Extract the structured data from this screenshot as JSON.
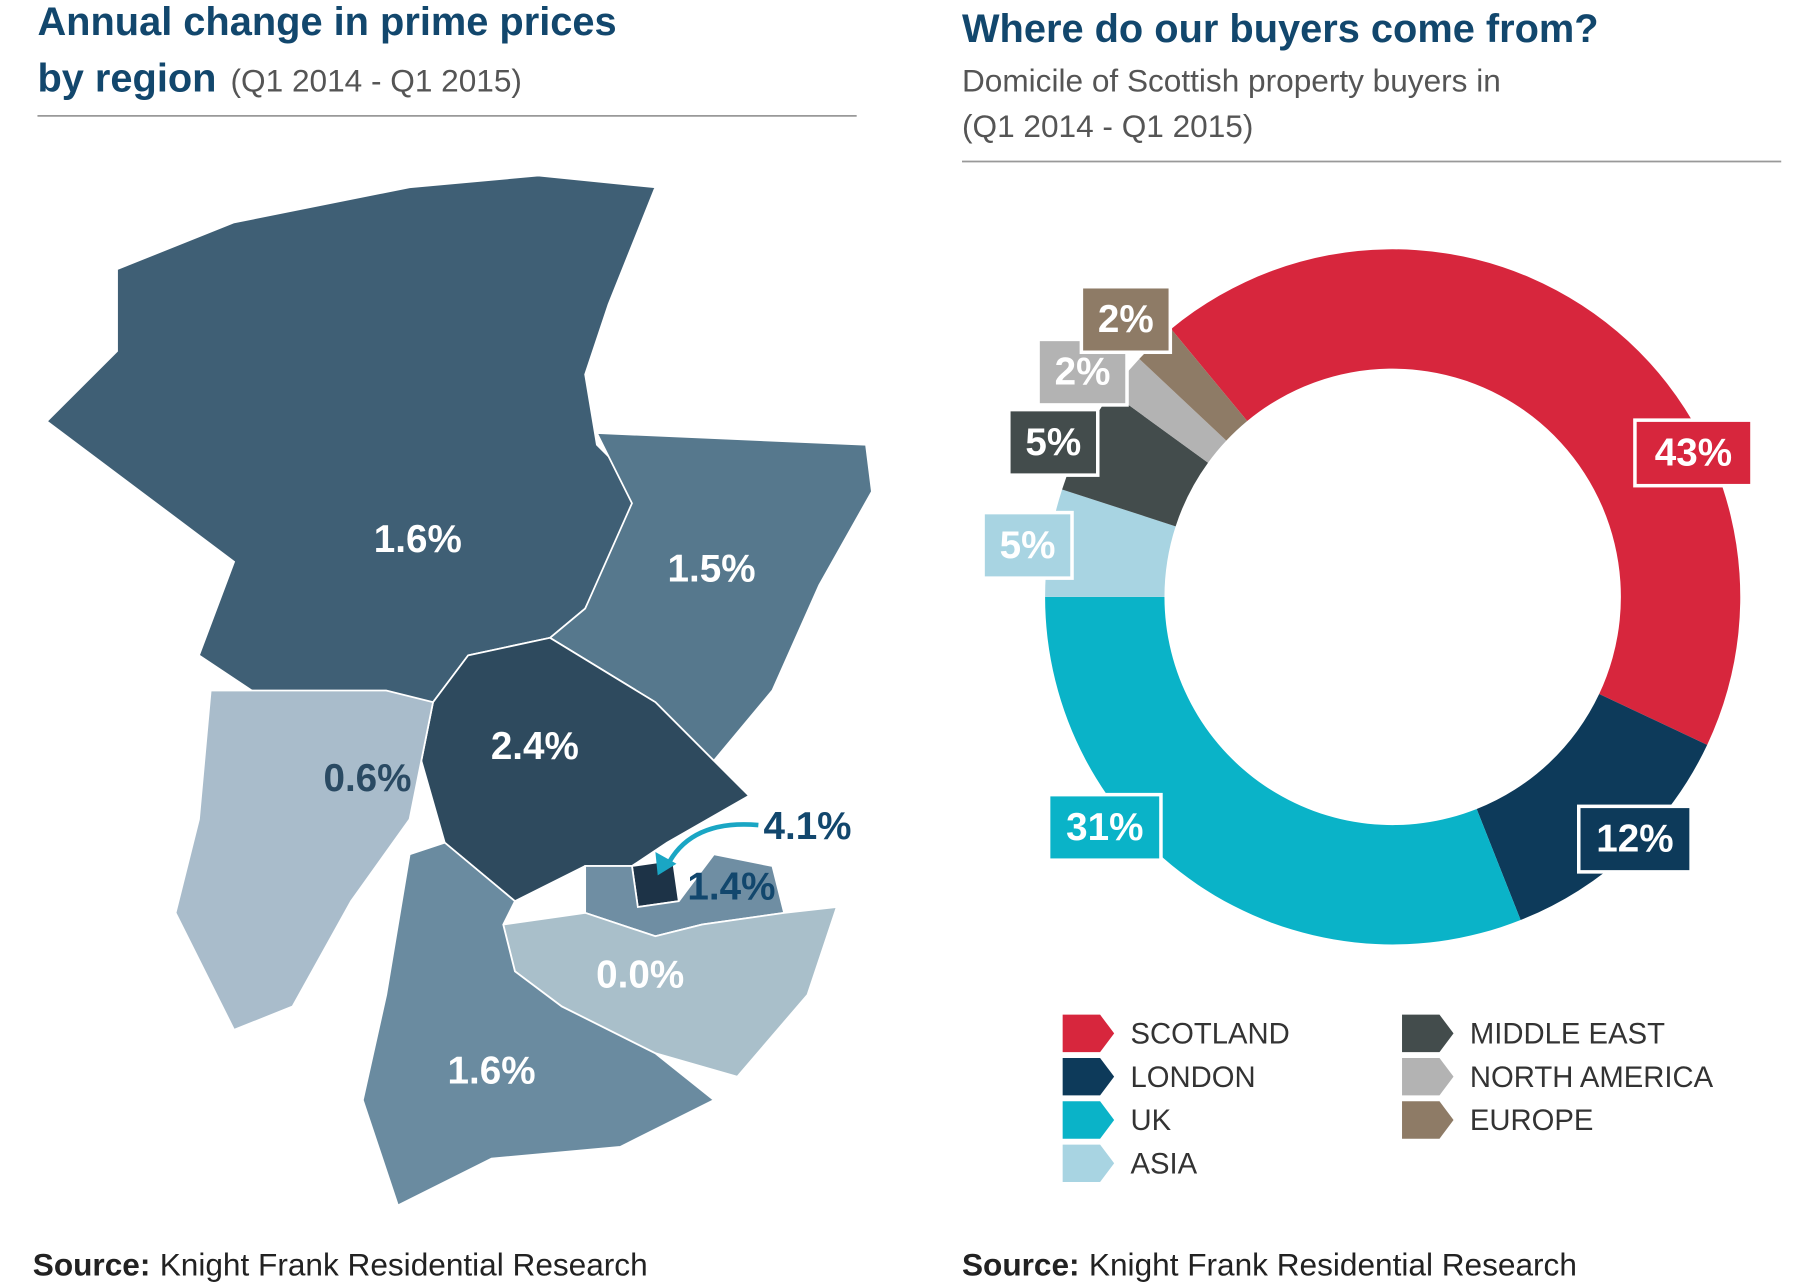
{
  "chart_data": [
    {
      "type": "map",
      "title": [
        "Annual change in prime prices",
        "by region"
      ],
      "subtitle": "(Q1 2014 - Q1 2015)",
      "values": [
        1.6,
        1.5,
        2.4,
        0.6,
        4.1,
        1.4,
        0.0,
        1.6
      ],
      "value_labels": [
        "1.6%",
        "1.5%",
        "2.4%",
        "0.6%",
        "4.1%",
        "1.4%",
        "0.0%",
        "1.6%"
      ],
      "colors": [
        "#3f5f75",
        "#56788d",
        "#2e4a5e",
        "#a9bccb",
        "#1d3347",
        "#6f8ea3",
        "#a9bfca",
        "#6a8ba0"
      ],
      "source_label": "Source:",
      "source": "Knight Frank Residential Research"
    },
    {
      "type": "donut",
      "title": "Where do our buyers come from?",
      "subtitle": [
        "Domicile of Scottish property buyers in",
        "(Q1 2014 - Q1 2015)"
      ],
      "categories": [
        "SCOTLAND",
        "LONDON",
        "UK",
        "ASIA",
        "MIDDLE EAST",
        "NORTH AMERICA",
        "EUROPE"
      ],
      "values": [
        43,
        12,
        31,
        5,
        5,
        2,
        2
      ],
      "value_labels": [
        "43%",
        "12%",
        "31%",
        "5%",
        "5%",
        "2%",
        "2%"
      ],
      "colors": [
        "#d7263d",
        "#0d3a5a",
        "#0ab3c8",
        "#a8d4e2",
        "#434c4c",
        "#b3b3b3",
        "#8e7b66"
      ],
      "source_label": "Source:",
      "source": "Knight Frank Residential Research"
    }
  ]
}
